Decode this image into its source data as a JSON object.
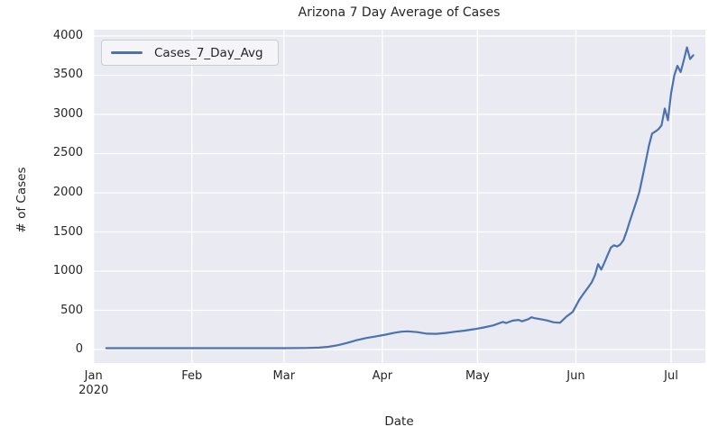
{
  "style": {
    "figure_bg": "#ffffff",
    "axes_bg": "#eaeaf2",
    "grid_color": "#ffffff",
    "line_color": "#4c72b0",
    "text_color": "#262626",
    "legend_bg": "#f4f4f9",
    "legend_border": "#cccccc"
  },
  "chart_data": {
    "type": "line",
    "title": "Arizona 7 Day Average of Cases",
    "xlabel": "Date",
    "ylabel": "# of Cases",
    "legend": [
      "Cases_7_Day_Avg"
    ],
    "legend_position": "upper left",
    "grid": true,
    "epoch": "2020-01-01",
    "xlim_days": [
      -0.2,
      192.8
    ],
    "ylim": [
      -172,
      4080
    ],
    "y_ticks": [
      0,
      500,
      1000,
      1500,
      2000,
      2500,
      3000,
      3500,
      4000
    ],
    "x_ticks": [
      {
        "label": "Jan",
        "sublabel": "2020",
        "date": "2020-01-01"
      },
      {
        "label": "Feb",
        "date": "2020-02-01"
      },
      {
        "label": "Mar",
        "date": "2020-03-01"
      },
      {
        "label": "Apr",
        "date": "2020-04-01"
      },
      {
        "label": "May",
        "date": "2020-05-01"
      },
      {
        "label": "Jun",
        "date": "2020-06-01"
      },
      {
        "label": "Jul",
        "date": "2020-07-01"
      }
    ],
    "x_dates": [
      "2020-01-05",
      "2020-01-12",
      "2020-01-19",
      "2020-01-26",
      "2020-02-02",
      "2020-02-09",
      "2020-02-16",
      "2020-02-23",
      "2020-03-01",
      "2020-03-08",
      "2020-03-12",
      "2020-03-15",
      "2020-03-18",
      "2020-03-21",
      "2020-03-24",
      "2020-03-27",
      "2020-03-30",
      "2020-04-02",
      "2020-04-05",
      "2020-04-07",
      "2020-04-09",
      "2020-04-12",
      "2020-04-15",
      "2020-04-18",
      "2020-04-21",
      "2020-04-24",
      "2020-04-27",
      "2020-04-30",
      "2020-05-03",
      "2020-05-06",
      "2020-05-09",
      "2020-05-10",
      "2020-05-12",
      "2020-05-14",
      "2020-05-15",
      "2020-05-17",
      "2020-05-18",
      "2020-05-19",
      "2020-05-21",
      "2020-05-23",
      "2020-05-25",
      "2020-05-27",
      "2020-05-29",
      "2020-05-31",
      "2020-06-01",
      "2020-06-02",
      "2020-06-03",
      "2020-06-05",
      "2020-06-06",
      "2020-06-07",
      "2020-06-08",
      "2020-06-09",
      "2020-06-10",
      "2020-06-11",
      "2020-06-12",
      "2020-06-13",
      "2020-06-14",
      "2020-06-15",
      "2020-06-16",
      "2020-06-17",
      "2020-06-18",
      "2020-06-20",
      "2020-06-21",
      "2020-06-22",
      "2020-06-23",
      "2020-06-24",
      "2020-06-25",
      "2020-06-26",
      "2020-06-27",
      "2020-06-28",
      "2020-06-29",
      "2020-06-30",
      "2020-07-01",
      "2020-07-02",
      "2020-07-03",
      "2020-07-04",
      "2020-07-05",
      "2020-07-06",
      "2020-07-07",
      "2020-07-08"
    ],
    "series": [
      {
        "name": "Cases_7_Day_Avg",
        "values": [
          18,
          18,
          18,
          18,
          18,
          18,
          18,
          18,
          18,
          20,
          25,
          35,
          55,
          85,
          120,
          148,
          168,
          190,
          215,
          228,
          232,
          222,
          203,
          200,
          212,
          228,
          242,
          260,
          282,
          308,
          352,
          338,
          368,
          378,
          360,
          388,
          412,
          400,
          386,
          370,
          348,
          342,
          420,
          480,
          555,
          630,
          690,
          800,
          860,
          950,
          1090,
          1020,
          1110,
          1205,
          1300,
          1330,
          1315,
          1340,
          1395,
          1510,
          1640,
          1880,
          2010,
          2200,
          2400,
          2600,
          2755,
          2780,
          2810,
          2860,
          3075,
          2925,
          3270,
          3495,
          3620,
          3540,
          3690,
          3855,
          3705,
          3755
        ]
      }
    ]
  }
}
